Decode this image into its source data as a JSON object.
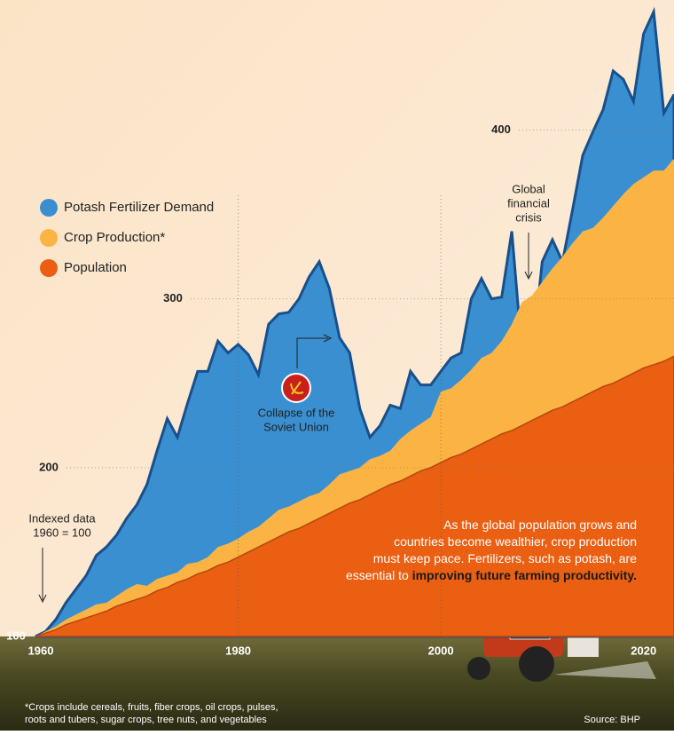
{
  "chart_data": {
    "type": "area",
    "x": [
      1960,
      1961,
      1962,
      1963,
      1964,
      1965,
      1966,
      1967,
      1968,
      1969,
      1970,
      1971,
      1972,
      1973,
      1974,
      1975,
      1976,
      1977,
      1978,
      1979,
      1980,
      1981,
      1982,
      1983,
      1984,
      1985,
      1986,
      1987,
      1988,
      1989,
      1990,
      1991,
      1992,
      1993,
      1994,
      1995,
      1996,
      1997,
      1998,
      1999,
      2000,
      2001,
      2002,
      2003,
      2004,
      2005,
      2006,
      2007,
      2008,
      2009,
      2010,
      2011,
      2012,
      2013,
      2014,
      2015,
      2016,
      2017,
      2018,
      2019,
      2020,
      2021,
      2022,
      2023
    ],
    "series": [
      {
        "name": "Potash Fertilizer Demand",
        "color": "#3a8fd0",
        "values": [
          100,
          103,
          110,
          120,
          128,
          136,
          148,
          153,
          160,
          170,
          178,
          190,
          210,
          229,
          218,
          238,
          257,
          257,
          275,
          268,
          273,
          267,
          255,
          285,
          291,
          292,
          300,
          313,
          322,
          306,
          277,
          268,
          235,
          218,
          225,
          237,
          235,
          257,
          249,
          249,
          257,
          265,
          268,
          300,
          312,
          300,
          301,
          340,
          268,
          265,
          322,
          335,
          322,
          353,
          385,
          399,
          412,
          435,
          430,
          417,
          457,
          470,
          410,
          421
        ]
      },
      {
        "name": "Crop Production*",
        "color": "#fbb443",
        "values": [
          100,
          103,
          106,
          110,
          113,
          116,
          119,
          120,
          124,
          128,
          131,
          130,
          134,
          136,
          138,
          143,
          144,
          147,
          153,
          155,
          158,
          162,
          165,
          170,
          175,
          177,
          180,
          183,
          185,
          190,
          196,
          198,
          200,
          205,
          207,
          210,
          217,
          222,
          226,
          230,
          245,
          247,
          252,
          258,
          265,
          268,
          275,
          285,
          298,
          302,
          310,
          318,
          325,
          333,
          340,
          342,
          348,
          355,
          362,
          368,
          372,
          376,
          376,
          383
        ]
      },
      {
        "name": "Population",
        "color": "#ea5f12",
        "values": [
          100,
          102,
          104,
          107,
          109,
          111,
          113,
          115,
          118,
          120,
          122,
          124,
          127,
          129,
          132,
          134,
          137,
          139,
          142,
          144,
          147,
          150,
          153,
          156,
          159,
          162,
          164,
          167,
          170,
          173,
          176,
          179,
          181,
          184,
          187,
          190,
          192,
          195,
          198,
          200,
          203,
          206,
          208,
          211,
          214,
          217,
          220,
          222,
          225,
          228,
          231,
          234,
          236,
          239,
          242,
          245,
          248,
          250,
          253,
          256,
          259,
          261,
          263,
          266
        ]
      }
    ],
    "xlim": [
      1960,
      2023
    ],
    "xticks": [
      1960,
      1980,
      2000,
      2020
    ],
    "ylim": [
      100,
      477
    ],
    "yticks": [
      100,
      200,
      300,
      400
    ],
    "grid": true,
    "legend": "upper left",
    "annotations": [
      [
        "Indexed data",
        "1960 = 100"
      ],
      [
        "Collapse of the",
        "Soviet Union"
      ],
      [
        "Global",
        "financial",
        "crisis"
      ]
    ],
    "body_text": [
      "As the global population grows and",
      "countries become wealthier, crop production",
      "must keep pace. Fertilizers, such as potash, are",
      "essential to "
    ],
    "body_emphasis": "improving future farming productivity.",
    "footnote": [
      "*Crops include cereals, fruits, fiber crops, oil crops, pulses,",
      "roots and tubers, sugar crops, tree nuts, and vegetables"
    ],
    "source": "Source: BHP"
  }
}
